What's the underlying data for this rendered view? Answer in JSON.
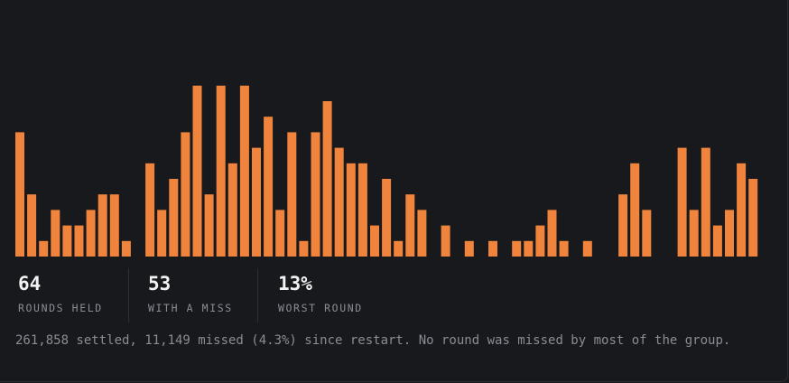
{
  "chart_data": {
    "type": "bar",
    "color": "#f0843c",
    "values": [
      8,
      4,
      1,
      3,
      2,
      2,
      3,
      4,
      4,
      1,
      0,
      6,
      3,
      5,
      8,
      11,
      4,
      11,
      6,
      11,
      7,
      9,
      3,
      8,
      1,
      8,
      10,
      7,
      6,
      6,
      2,
      5,
      1,
      4,
      3,
      0,
      2,
      0,
      1,
      0,
      1,
      0,
      1,
      1,
      2,
      3,
      1,
      0,
      1,
      0,
      0,
      4,
      6,
      3,
      0,
      0,
      7,
      3,
      7,
      2,
      3,
      6,
      5,
      0
    ]
  },
  "stats": [
    {
      "value": "64",
      "label": "ROUNDS HELD"
    },
    {
      "value": "53",
      "label": "WITH A MISS"
    },
    {
      "value": "13%",
      "label": "WORST ROUND"
    }
  ],
  "footer": "261,858 settled, 11,149 missed (4.3%) since restart. No round was missed by most of the group."
}
